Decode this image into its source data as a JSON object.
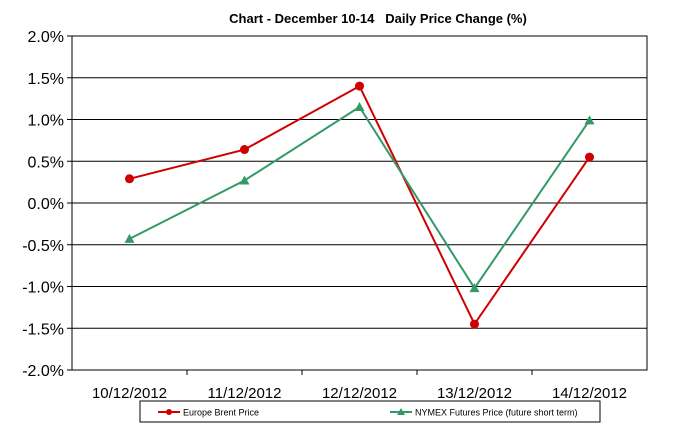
{
  "chart_data": {
    "type": "line",
    "title": "Chart - December 10-14   Daily Price Change (%)",
    "xlabel": "",
    "ylabel": "",
    "ylim": [
      -2.0,
      2.0
    ],
    "ytick_step": 0.5,
    "yticks": [
      "2.0%",
      "1.5%",
      "1.0%",
      "0.5%",
      "0.0%",
      "-0.5%",
      "-1.0%",
      "-1.5%",
      "-2.0%"
    ],
    "grid": true,
    "legend_position": "bottom",
    "categories": [
      "10/12/2012",
      "11/12/2012",
      "12/12/2012",
      "13/12/2012",
      "14/12/2012"
    ],
    "series": [
      {
        "name": "Europe Brent Price",
        "color": "#d00000",
        "marker": "circle",
        "values": [
          0.29,
          0.64,
          1.4,
          -1.45,
          0.55
        ]
      },
      {
        "name": "NYMEX Futures Price (future short term)",
        "color": "#339966",
        "marker": "triangle",
        "values": [
          -0.43,
          0.27,
          1.15,
          -1.02,
          0.99
        ]
      }
    ]
  }
}
